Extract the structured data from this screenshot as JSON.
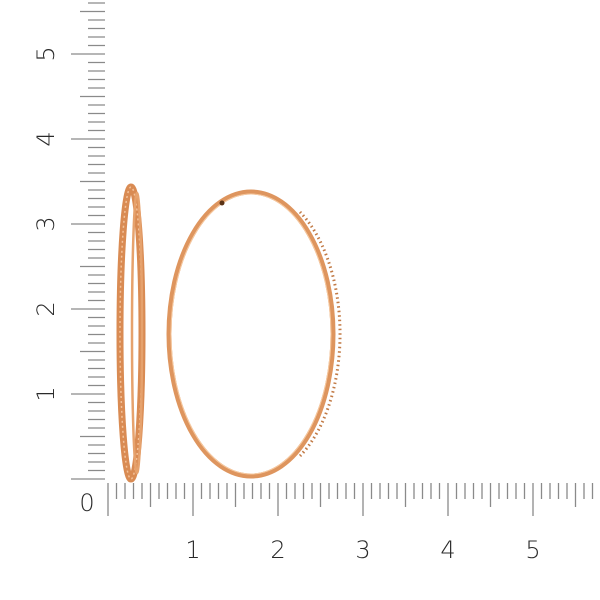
{
  "product": "hoop earrings",
  "metal_color": "#de955e",
  "metal_highlight": "#f6c9a0",
  "metal_shadow": "#b86a38",
  "ruler": {
    "unit": "cm",
    "origin_label": "0",
    "vertical_labels": [
      "1",
      "2",
      "3",
      "4",
      "5"
    ],
    "horizontal_labels": [
      "1",
      "2",
      "3",
      "4",
      "5"
    ],
    "tick_color": "#8a8a8a"
  }
}
